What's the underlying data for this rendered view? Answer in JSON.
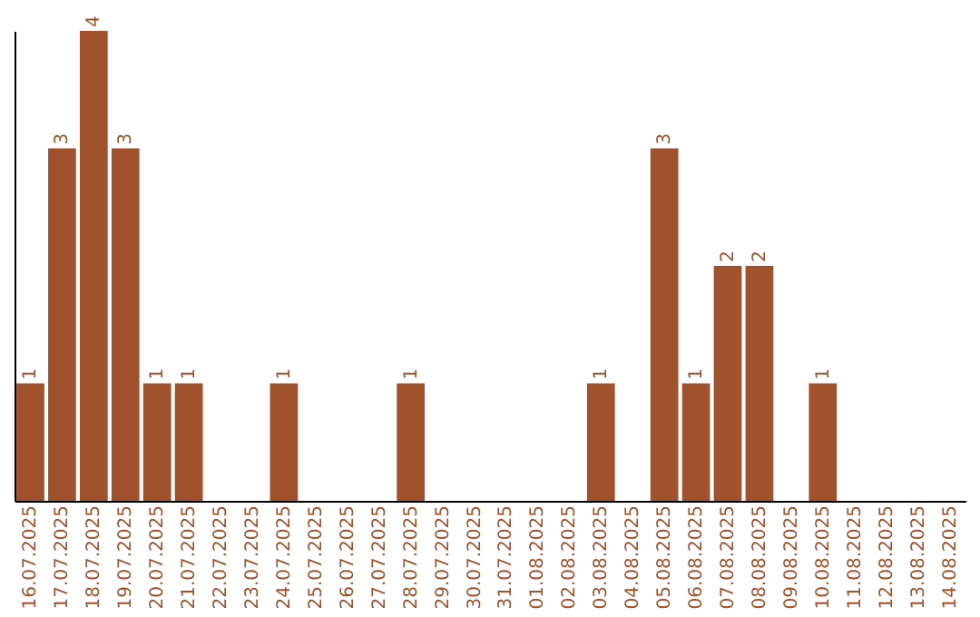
{
  "chart_data": {
    "type": "bar",
    "categories": [
      "16.07.2025",
      "17.07.2025",
      "18.07.2025",
      "19.07.2025",
      "20.07.2025",
      "21.07.2025",
      "22.07.2025",
      "23.07.2025",
      "24.07.2025",
      "25.07.2025",
      "26.07.2025",
      "27.07.2025",
      "28.07.2025",
      "29.07.2025",
      "30.07.2025",
      "31.07.2025",
      "01.08.2025",
      "02.08.2025",
      "03.08.2025",
      "04.08.2025",
      "05.08.2025",
      "06.08.2025",
      "07.08.2025",
      "08.08.2025",
      "09.08.2025",
      "10.08.2025",
      "11.08.2025",
      "12.08.2025",
      "13.08.2025",
      "14.08.2025"
    ],
    "values": [
      1,
      3,
      4,
      3,
      1,
      1,
      0,
      0,
      1,
      0,
      0,
      0,
      1,
      0,
      0,
      0,
      0,
      0,
      1,
      0,
      3,
      1,
      2,
      2,
      0,
      1,
      0,
      0,
      0,
      0
    ],
    "value_labels": [
      "1",
      "3",
      "4",
      "3",
      "1",
      "1",
      null,
      null,
      "1",
      null,
      null,
      null,
      "1",
      null,
      null,
      null,
      null,
      null,
      "1",
      null,
      "3",
      "1",
      "2",
      "2",
      null,
      "1",
      null,
      null,
      null,
      null
    ],
    "color": "#a0522d",
    "grid": false
  }
}
